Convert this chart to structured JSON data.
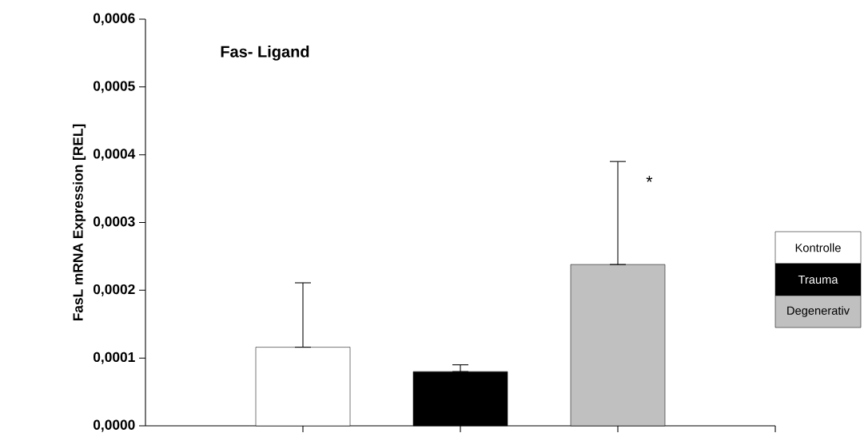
{
  "chart_data": {
    "type": "bar",
    "title": "Fas- Ligand",
    "ylabel": "FasL mRNA Expression [REL]",
    "categories": [
      null,
      null,
      null
    ],
    "series": [
      {
        "name": "Kontrolle",
        "color": "#ffffff",
        "values": [
          0.000116,
          null,
          null
        ],
        "errors": [
          [
            0.000116,
            0.000211
          ],
          null,
          null
        ]
      },
      {
        "name": "Trauma",
        "color": "#000000",
        "values": [
          null,
          8e-05,
          null
        ],
        "errors": [
          null,
          [
            8e-05,
            9e-05
          ],
          null
        ]
      },
      {
        "name": "Degenerativ",
        "color": "#c0c0c0",
        "values": [
          null,
          null,
          0.000238
        ],
        "errors": [
          null,
          null,
          [
            0.000238,
            0.00039
          ]
        ]
      }
    ],
    "ylim": [
      0,
      0.0006
    ],
    "yticks": [
      {
        "value": 0,
        "label": "0,0000"
      },
      {
        "value": 0.0001,
        "label": "0,0001"
      },
      {
        "value": 0.0002,
        "label": "0,0002"
      },
      {
        "value": 0.0003,
        "label": "0,0003"
      },
      {
        "value": 0.0004,
        "label": "0,0004"
      },
      {
        "value": 0.0005,
        "label": "0,0005"
      },
      {
        "value": 0.0006,
        "label": "0,0006"
      }
    ],
    "annotations": [
      "*"
    ],
    "legend": "right",
    "grid": false
  }
}
